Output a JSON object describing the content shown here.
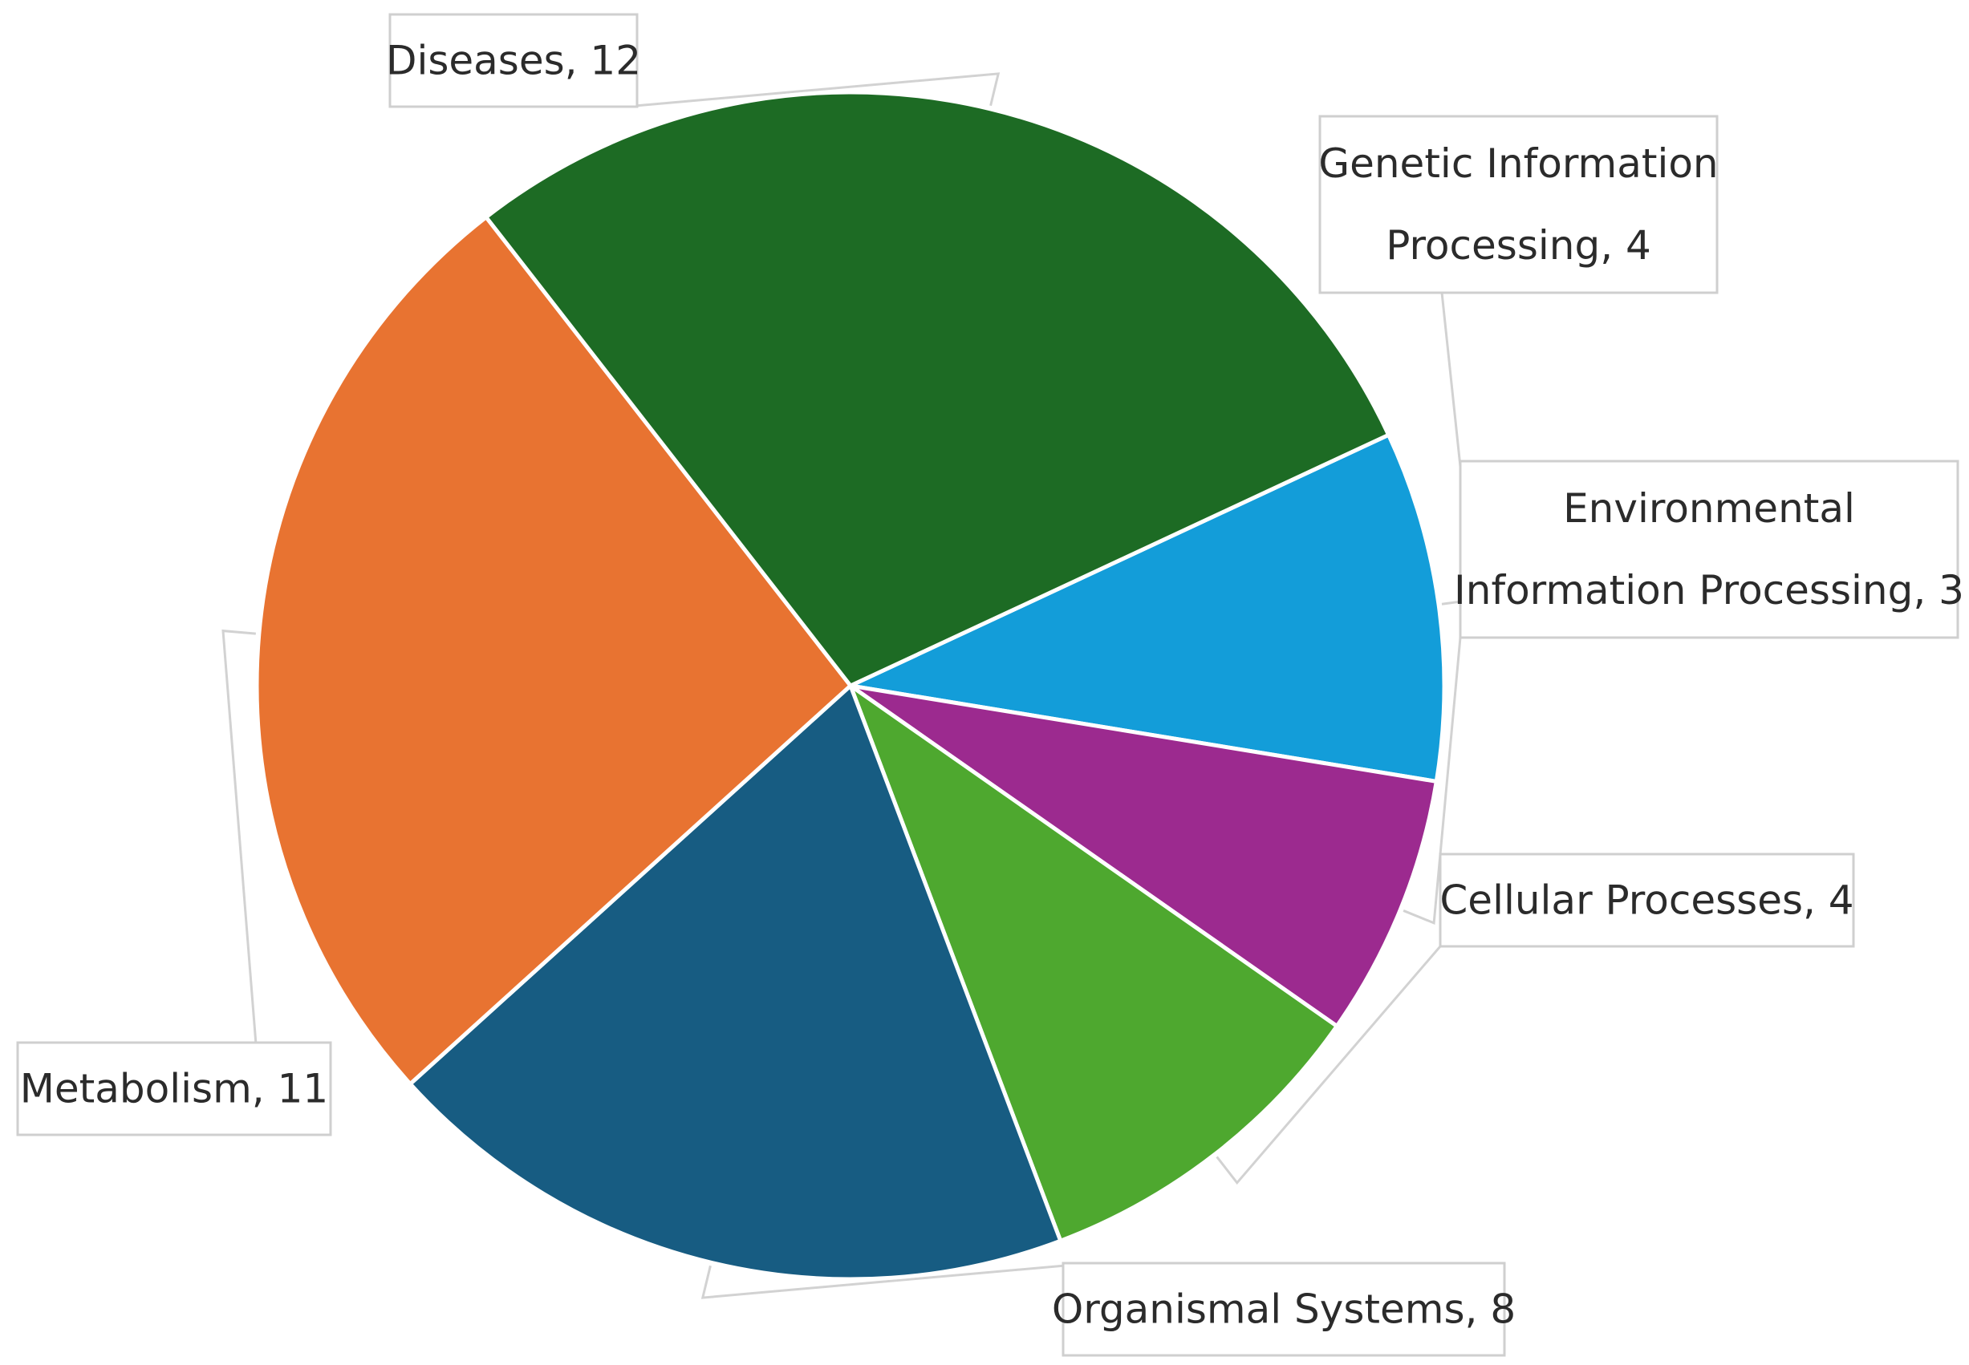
{
  "chart_data": {
    "type": "pie",
    "title": "",
    "legend": "none",
    "slices": [
      {
        "name": "Genetic Information Processing",
        "value": 4,
        "color": "#139DD9",
        "label_lines": [
          "Genetic Information",
          "Processing, 4"
        ]
      },
      {
        "name": "Environmental Information Processing",
        "value": 3,
        "color": "#9C2A8F",
        "label_lines": [
          "Environmental",
          "Information Processing, 3"
        ]
      },
      {
        "name": "Cellular Processes",
        "value": 4,
        "color": "#4EA82F",
        "label_lines": [
          "Cellular Processes, 4"
        ]
      },
      {
        "name": "Organismal Systems",
        "value": 8,
        "color": "#175C82",
        "label_lines": [
          "Organismal Systems, 8"
        ]
      },
      {
        "name": "Metabolism",
        "value": 11,
        "color": "#E87331",
        "label_lines": [
          "Metabolism, 11"
        ]
      },
      {
        "name": "Diseases",
        "value": 12,
        "color": "#1D6B24",
        "label_lines": [
          "Diseases, 12"
        ]
      }
    ]
  }
}
